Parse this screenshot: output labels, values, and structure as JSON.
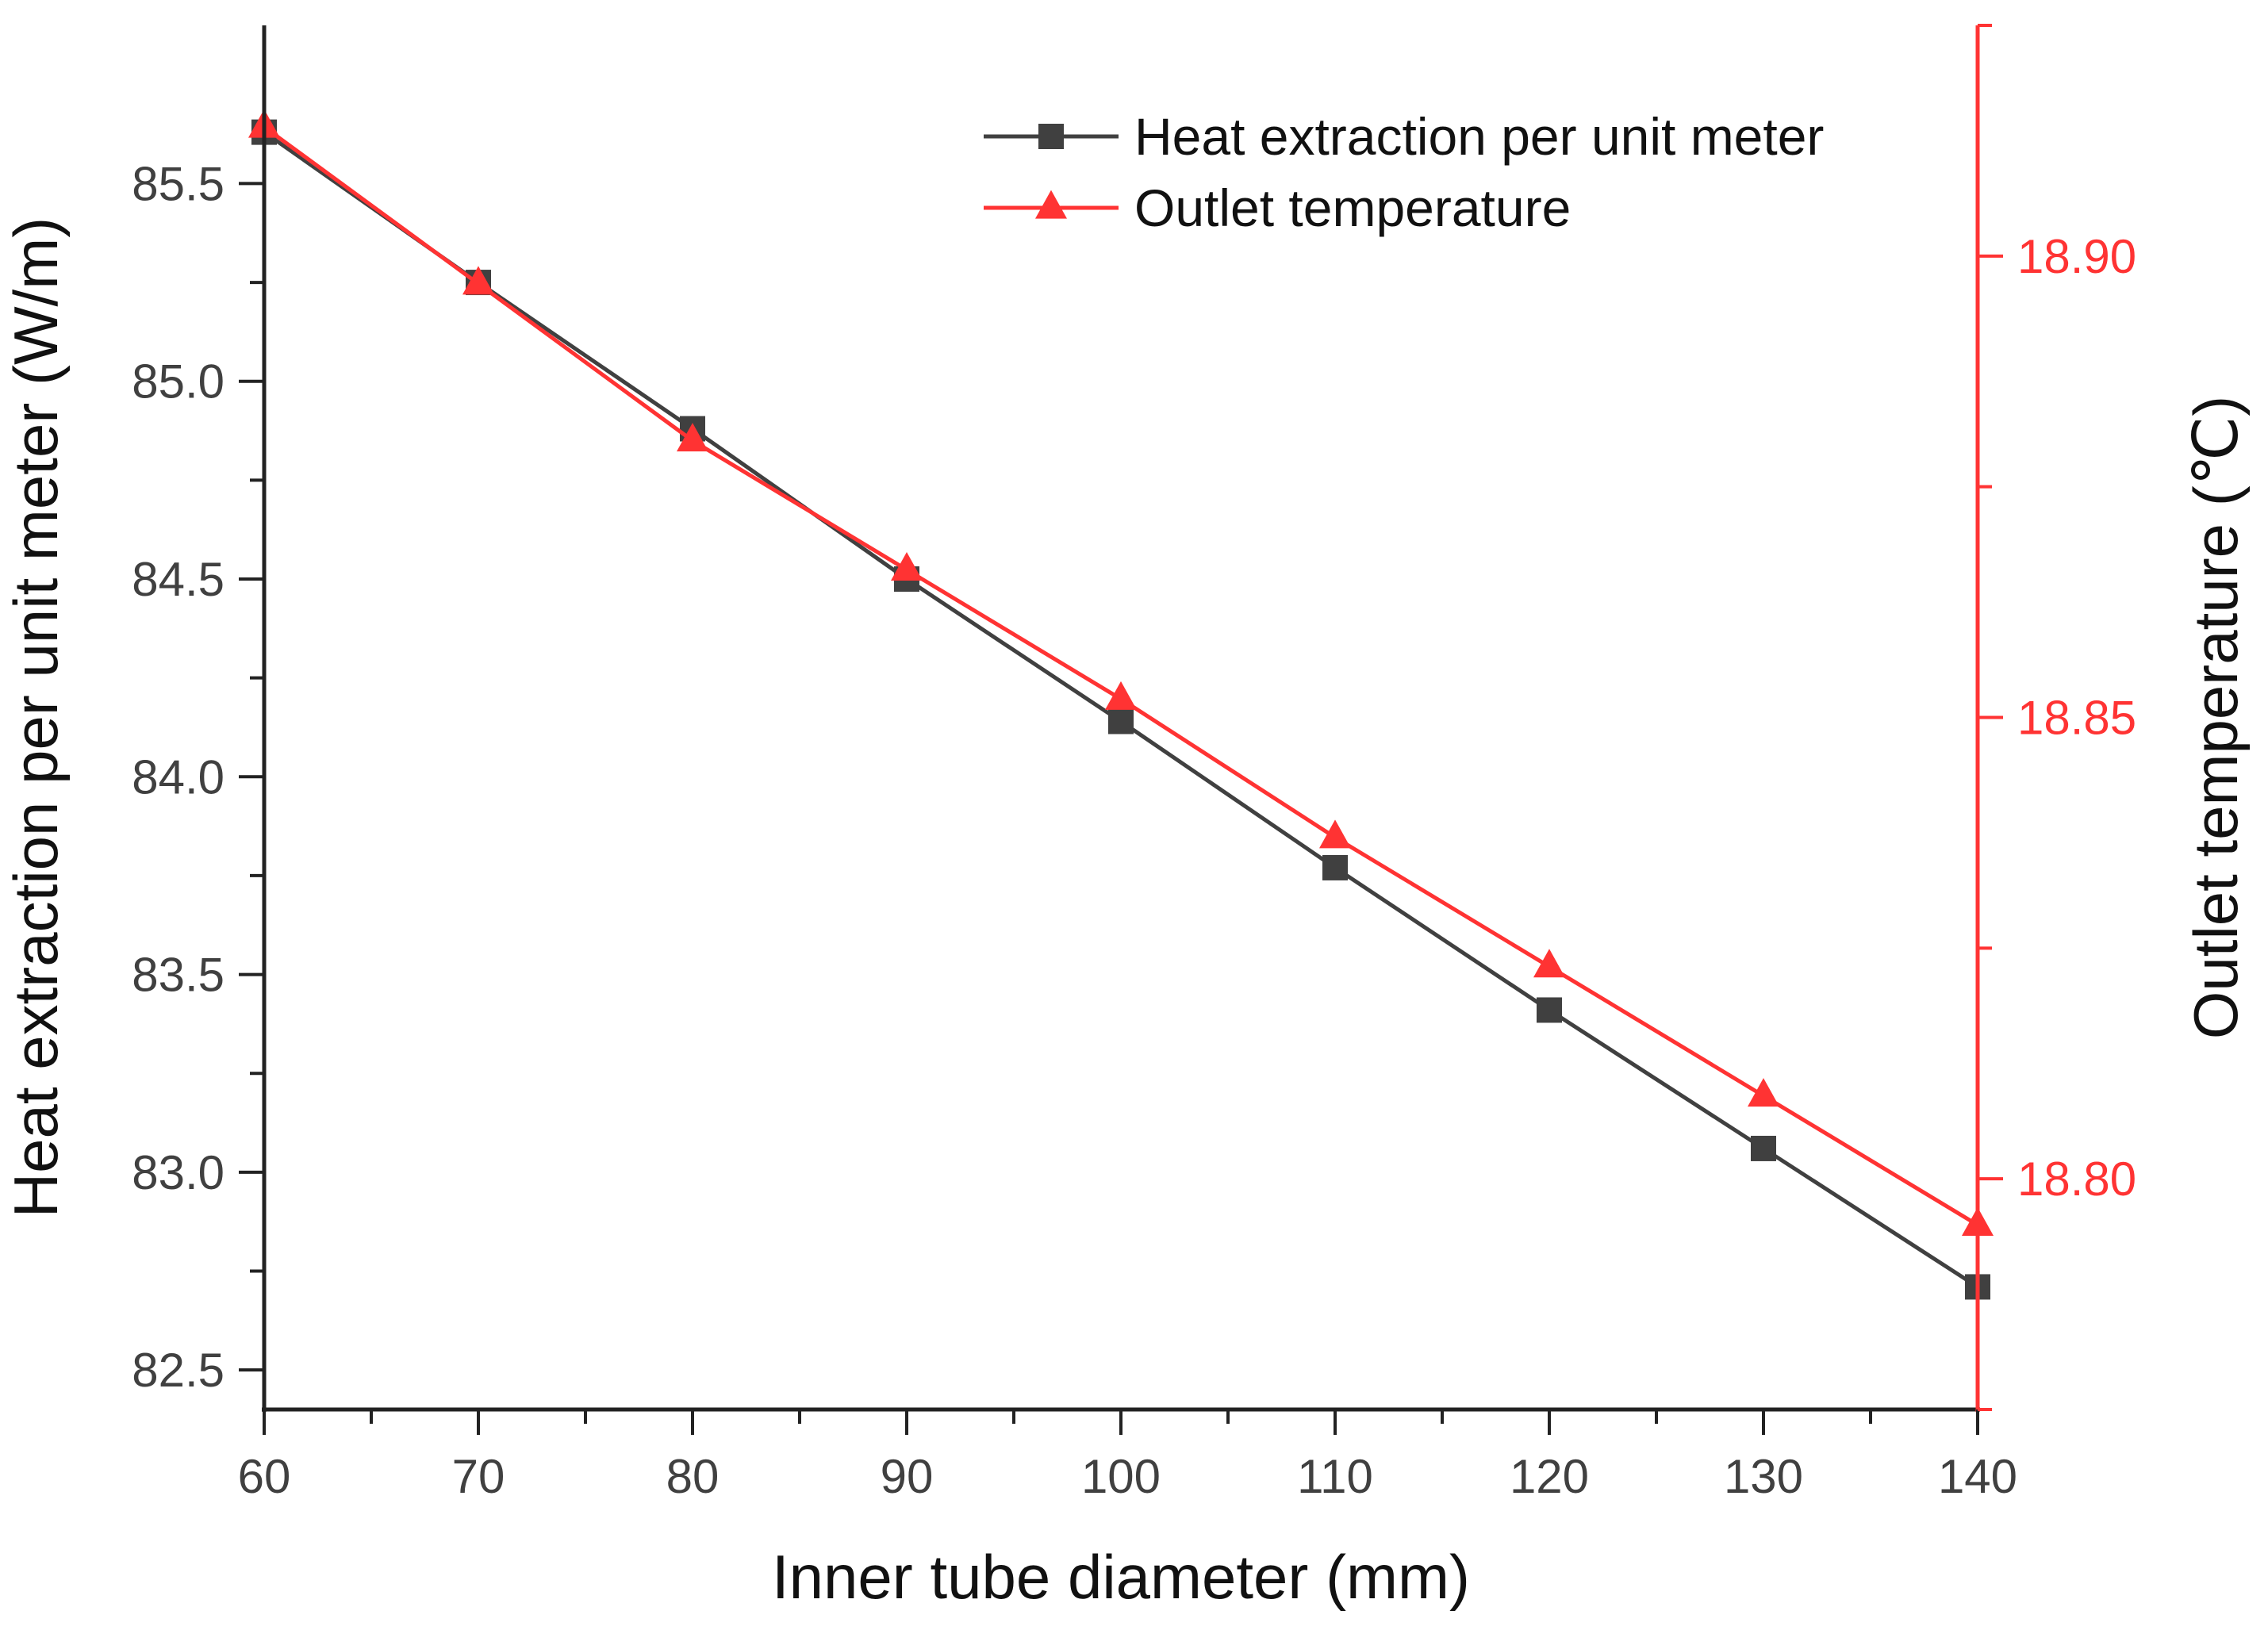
{
  "chart_data": {
    "type": "line",
    "title": "",
    "xlabel": "Inner tube diameter (mm)",
    "ylabel": "Heat extraction per unit meter (W/m)",
    "y2label": "Outlet temperature (℃)",
    "x": [
      60,
      70,
      80,
      90,
      100,
      110,
      120,
      130,
      140
    ],
    "xlim": [
      60,
      140
    ],
    "xticks": [
      60,
      70,
      80,
      90,
      100,
      110,
      120,
      130,
      140
    ],
    "ylim": [
      82.4,
      85.9
    ],
    "yticks": [
      82.5,
      83.0,
      83.5,
      84.0,
      84.5,
      85.0,
      85.5
    ],
    "y2lim": [
      18.775,
      18.925
    ],
    "y2ticks": [
      18.8,
      18.85,
      18.9
    ],
    "grid": false,
    "legend_position": "top-right",
    "series": [
      {
        "name": "Heat extraction per unit meter",
        "axis": "left",
        "marker": "square",
        "color": "#404040",
        "values": [
          85.63,
          85.25,
          84.88,
          84.5,
          84.14,
          83.77,
          83.41,
          83.06,
          82.71
        ]
      },
      {
        "name": "Outlet temperature",
        "axis": "right",
        "marker": "triangle",
        "color": "#ff3333",
        "values": [
          18.914,
          18.897,
          18.88,
          18.866,
          18.852,
          18.837,
          18.823,
          18.809,
          18.795
        ]
      }
    ]
  }
}
